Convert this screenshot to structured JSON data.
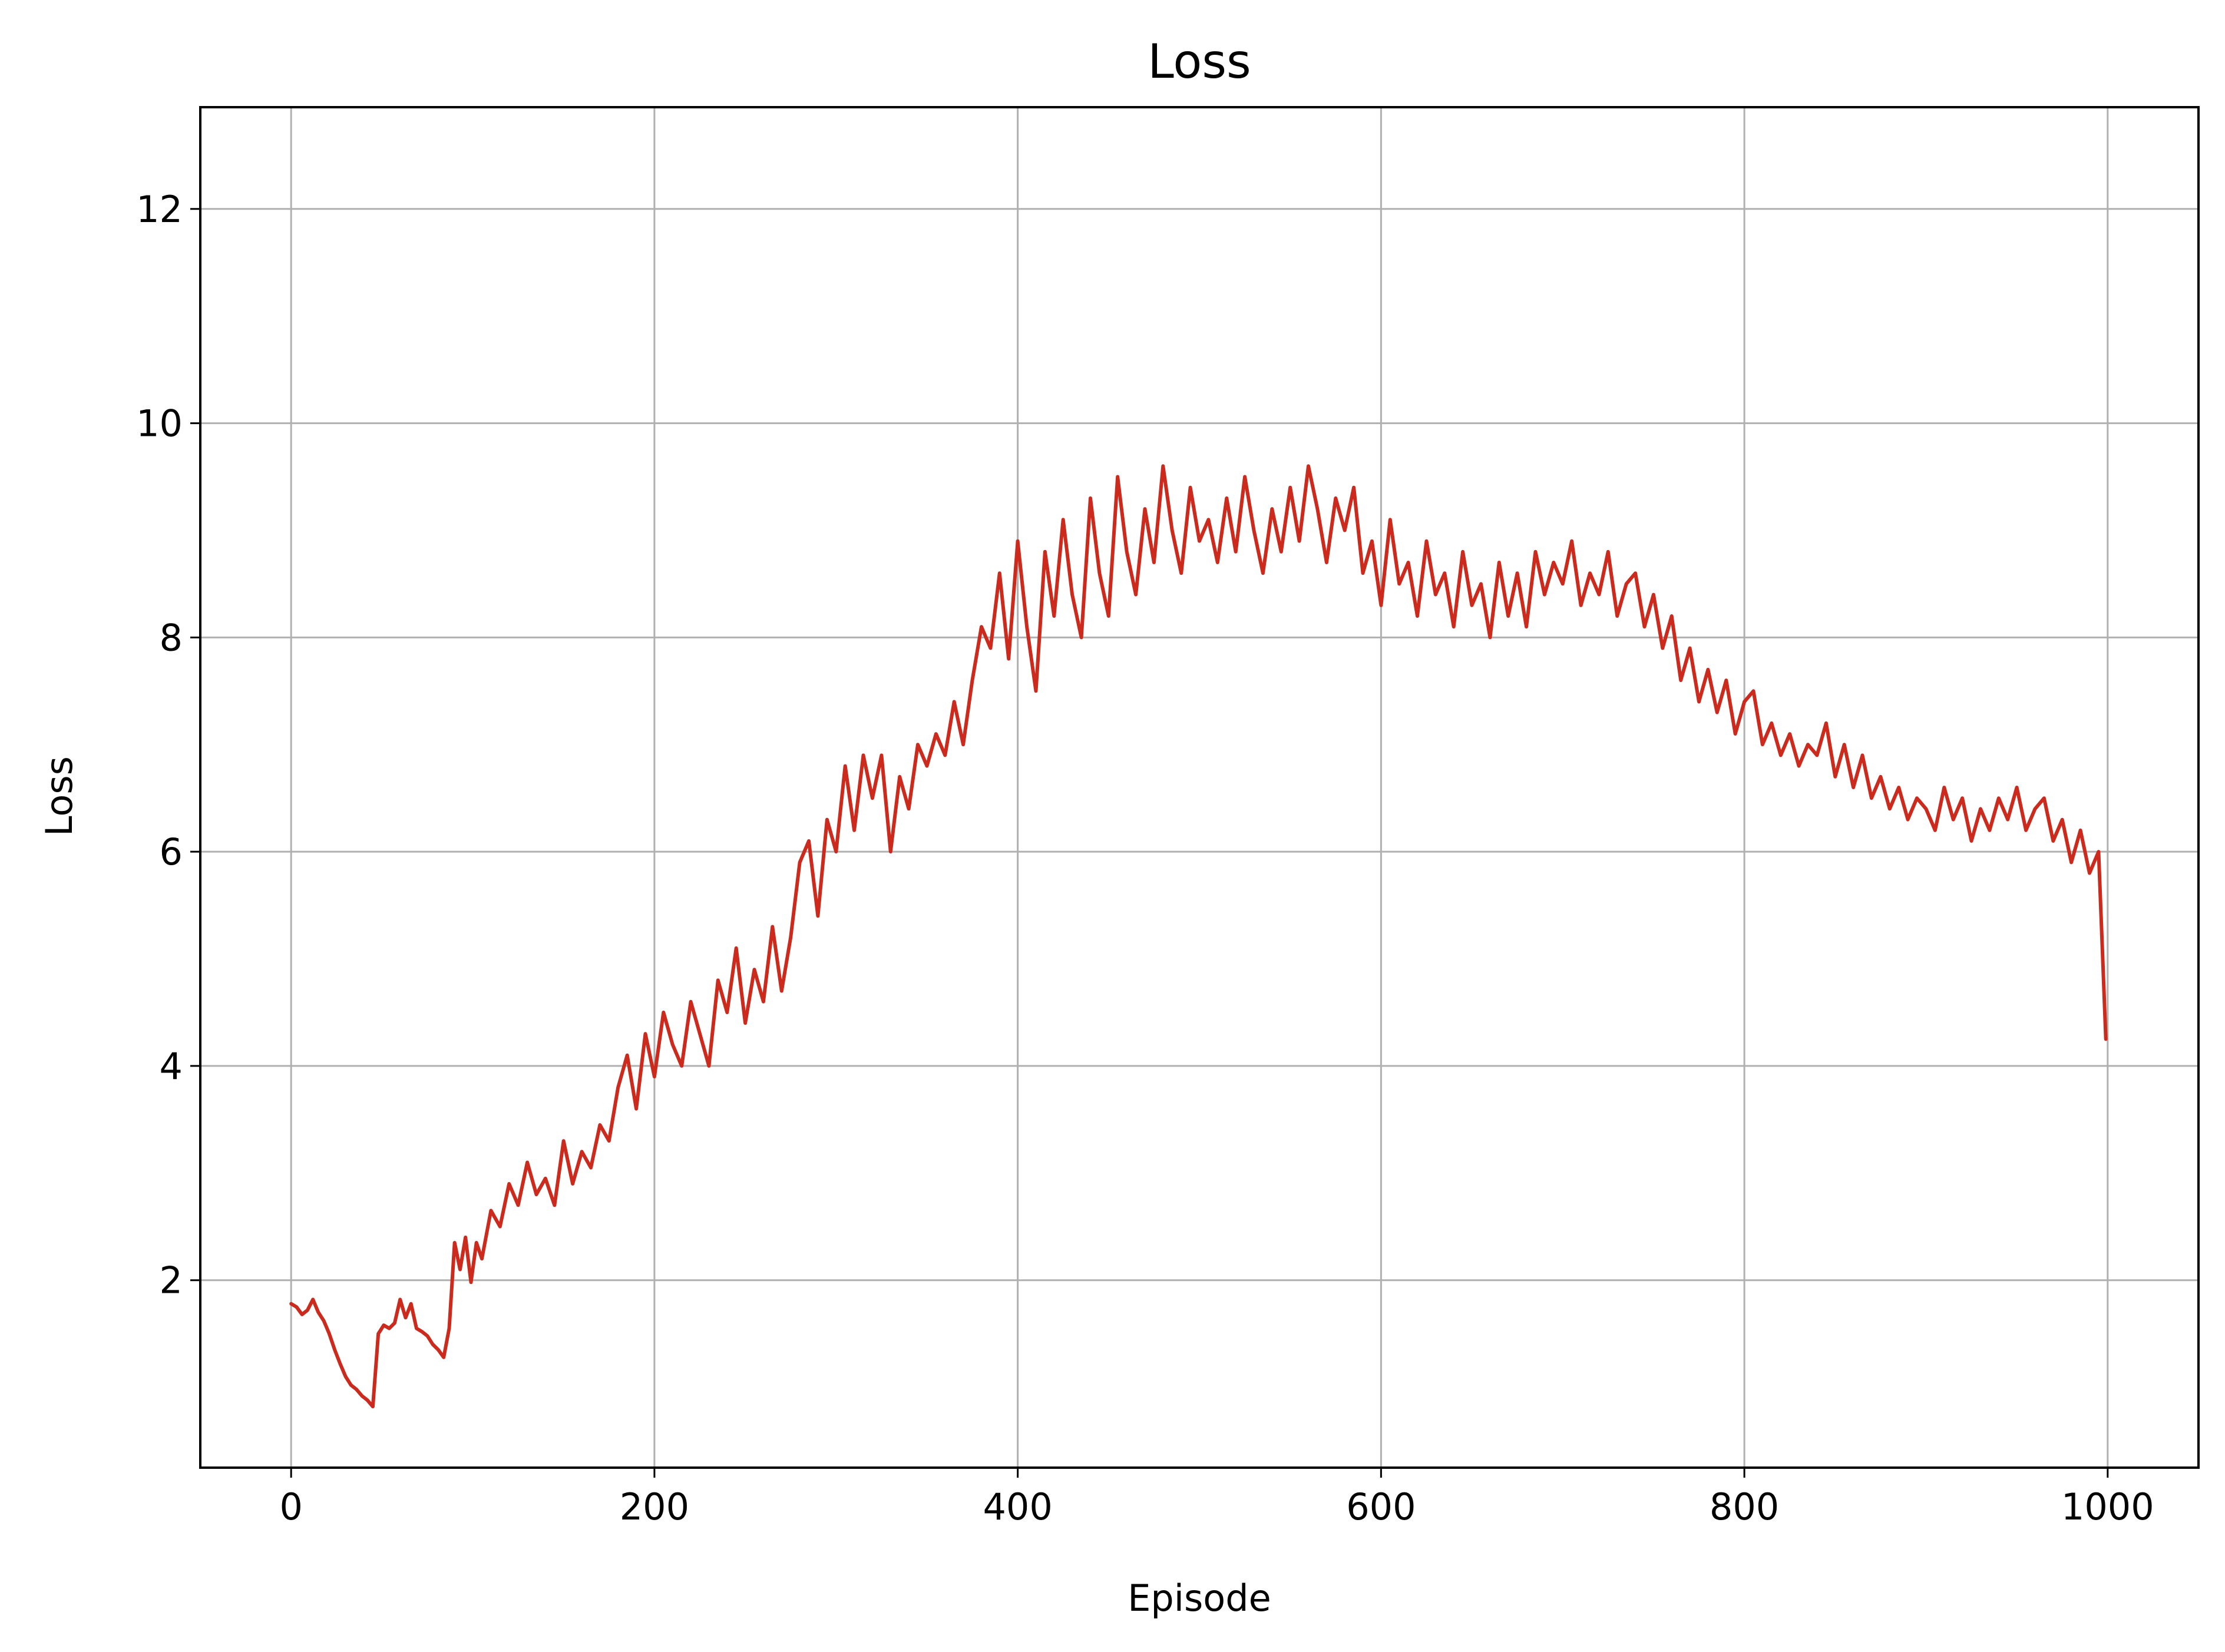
{
  "chart_data": {
    "type": "line",
    "title": "Loss",
    "xlabel": "Episode",
    "ylabel": "Loss",
    "xlim": [
      -50,
      1050
    ],
    "ylim": [
      0.25,
      12.95
    ],
    "xticks": [
      0,
      200,
      400,
      600,
      800,
      1000
    ],
    "yticks": [
      2,
      4,
      6,
      8,
      10,
      12
    ],
    "grid": true,
    "line_color": "#cc2a1d",
    "series": [
      {
        "x": [
          0,
          3,
          6,
          9,
          12,
          15,
          18,
          21,
          24,
          27,
          30,
          33,
          36,
          39,
          42,
          45,
          48,
          51,
          54,
          57,
          60,
          63,
          66,
          69,
          72,
          75,
          78,
          81,
          84,
          87,
          90,
          93,
          96,
          99,
          102,
          105,
          110,
          115,
          120,
          125,
          130,
          135,
          140,
          145,
          150,
          155,
          160,
          165,
          170,
          175,
          180,
          185,
          190,
          195,
          200,
          205,
          210,
          215,
          220,
          225,
          230,
          235,
          240,
          245,
          250,
          255,
          260,
          265,
          270,
          275,
          280,
          285,
          290,
          295,
          300,
          305,
          310,
          315,
          320,
          325,
          330,
          335,
          340,
          345,
          350,
          355,
          360,
          365,
          370,
          375,
          380,
          385,
          390,
          395,
          400,
          405,
          410,
          415,
          420,
          425,
          430,
          435,
          440,
          445,
          450,
          455,
          460,
          465,
          470,
          475,
          480,
          485,
          490,
          495,
          500,
          505,
          510,
          515,
          520,
          525,
          530,
          535,
          540,
          545,
          550,
          555,
          560,
          565,
          570,
          575,
          580,
          585,
          590,
          595,
          600,
          605,
          610,
          615,
          620,
          625,
          630,
          635,
          640,
          645,
          650,
          655,
          660,
          665,
          670,
          675,
          680,
          685,
          690,
          695,
          700,
          705,
          710,
          715,
          720,
          725,
          730,
          735,
          740,
          745,
          750,
          755,
          760,
          765,
          770,
          775,
          780,
          785,
          790,
          795,
          800,
          805,
          810,
          815,
          820,
          825,
          830,
          835,
          840,
          845,
          850,
          855,
          860,
          865,
          870,
          875,
          880,
          885,
          890,
          895,
          900,
          905,
          910,
          915,
          920,
          925,
          930,
          935,
          940,
          945,
          950,
          955,
          960,
          965,
          970,
          975,
          980,
          985,
          990,
          995,
          999
        ],
        "y": [
          1.78,
          1.75,
          1.68,
          1.72,
          1.82,
          1.7,
          1.62,
          1.5,
          1.35,
          1.22,
          1.1,
          1.02,
          0.98,
          0.92,
          0.88,
          0.82,
          1.5,
          1.58,
          1.55,
          1.6,
          1.82,
          1.65,
          1.78,
          1.55,
          1.52,
          1.48,
          1.4,
          1.35,
          1.28,
          1.55,
          2.35,
          2.1,
          2.4,
          1.98,
          2.35,
          2.2,
          2.65,
          2.5,
          2.9,
          2.7,
          3.1,
          2.8,
          2.95,
          2.7,
          3.3,
          2.9,
          3.2,
          3.05,
          3.45,
          3.3,
          3.8,
          4.1,
          3.6,
          4.3,
          3.9,
          4.5,
          4.2,
          4.0,
          4.6,
          4.3,
          4.0,
          4.8,
          4.5,
          5.1,
          4.4,
          4.9,
          4.6,
          5.3,
          4.7,
          5.2,
          5.9,
          6.1,
          5.4,
          6.3,
          6.0,
          6.8,
          6.2,
          6.9,
          6.5,
          6.9,
          6.0,
          6.7,
          6.4,
          7.0,
          6.8,
          7.1,
          6.9,
          7.4,
          7.0,
          7.6,
          8.1,
          7.9,
          8.6,
          7.8,
          8.9,
          8.1,
          7.5,
          8.8,
          8.2,
          9.1,
          8.4,
          8.0,
          9.3,
          8.6,
          8.2,
          9.5,
          8.8,
          8.4,
          9.2,
          8.7,
          9.6,
          9.0,
          8.6,
          9.4,
          8.9,
          9.1,
          8.7,
          9.3,
          8.8,
          9.5,
          9.0,
          8.6,
          9.2,
          8.8,
          9.4,
          8.9,
          9.6,
          9.2,
          8.7,
          9.3,
          9.0,
          9.4,
          8.6,
          8.9,
          8.3,
          9.1,
          8.5,
          8.7,
          8.2,
          8.9,
          8.4,
          8.6,
          8.1,
          8.8,
          8.3,
          8.5,
          8.0,
          8.7,
          8.2,
          8.6,
          8.1,
          8.8,
          8.4,
          8.7,
          8.5,
          8.9,
          8.3,
          8.6,
          8.4,
          8.8,
          8.2,
          8.5,
          8.6,
          8.1,
          8.4,
          7.9,
          8.2,
          7.6,
          7.9,
          7.4,
          7.7,
          7.3,
          7.6,
          7.1,
          7.4,
          7.5,
          7.0,
          7.2,
          6.9,
          7.1,
          6.8,
          7.0,
          6.9,
          7.2,
          6.7,
          7.0,
          6.6,
          6.9,
          6.5,
          6.7,
          6.4,
          6.6,
          6.3,
          6.5,
          6.4,
          6.2,
          6.6,
          6.3,
          6.5,
          6.1,
          6.4,
          6.2,
          6.5,
          6.3,
          6.6,
          6.2,
          6.4,
          6.5,
          6.1,
          6.3,
          5.9,
          6.2,
          5.8,
          6.0,
          4.25
        ]
      }
    ]
  }
}
